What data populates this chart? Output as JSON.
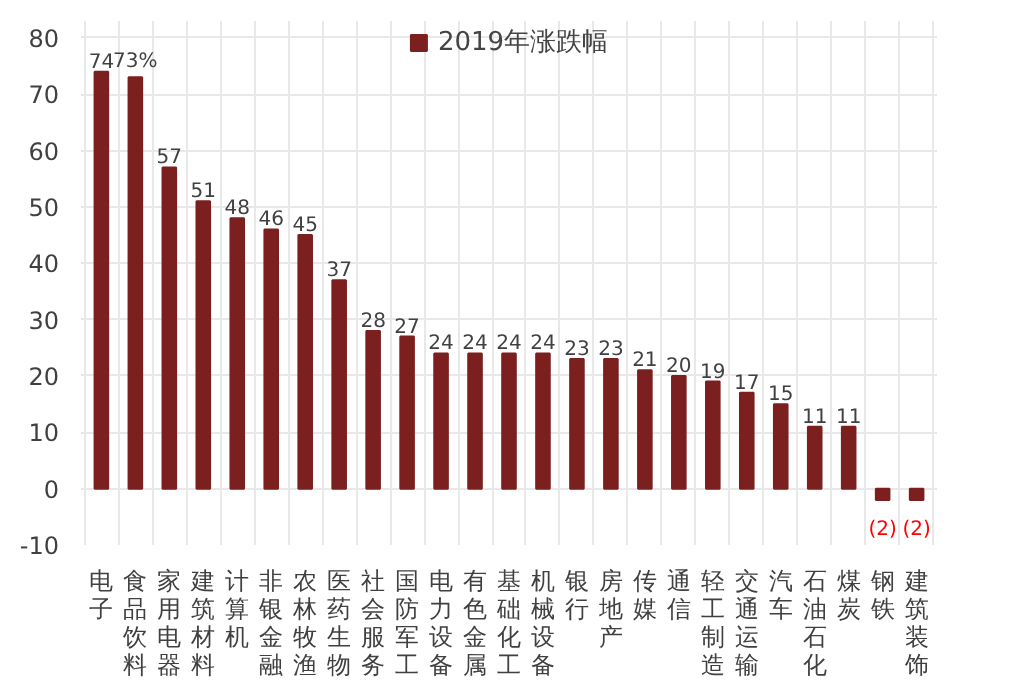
{
  "chart_data": {
    "type": "bar",
    "categories": [
      "电子",
      "食品饮料",
      "家用电器",
      "建筑材料",
      "计算机",
      "非银金融",
      "农林牧渔",
      "医药生物",
      "社会服务",
      "国防军工",
      "电力设备",
      "有色金属",
      "基础化工",
      "机械设备",
      "银行",
      "房地产",
      "传媒",
      "通信",
      "轻工制造",
      "交通运输",
      "汽车",
      "石油石化",
      "煤炭",
      "钢铁",
      "建筑装饰"
    ],
    "series": [
      {
        "name": "2019年涨跌幅",
        "color": "#7b1f1f",
        "values": [
          74,
          73,
          57,
          51,
          48,
          46,
          45,
          37,
          28,
          27,
          24,
          24,
          24,
          24,
          23,
          23,
          21,
          20,
          19,
          17,
          15,
          11,
          11,
          -2,
          -2
        ]
      }
    ],
    "value_labels": [
      "74",
      "73%",
      "57",
      "51",
      "48",
      "46",
      "45",
      "37",
      "28",
      "27",
      "24",
      "24",
      "24",
      "24",
      "23",
      "23",
      "21",
      "20",
      "19",
      "17",
      "15",
      "11",
      "11",
      "(2)",
      "(2)"
    ],
    "ylim": [
      -10,
      83
    ],
    "yticks": [
      -10,
      0,
      10,
      20,
      30,
      40,
      50,
      60,
      70,
      80
    ],
    "grid": true,
    "legend": "top"
  }
}
